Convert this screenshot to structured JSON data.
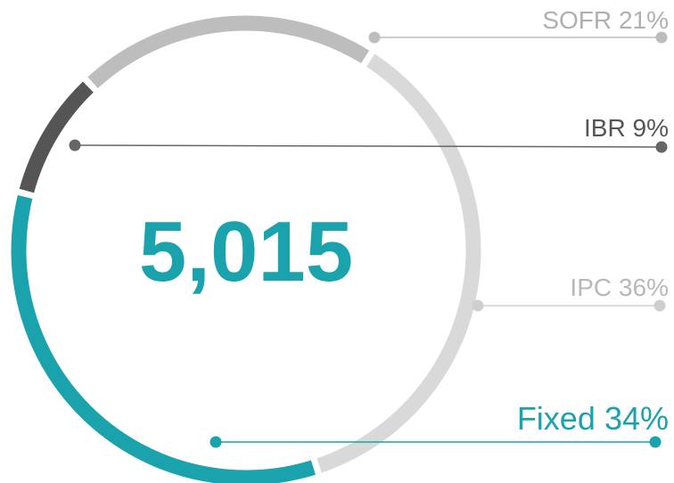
{
  "chart_data": {
    "type": "donut",
    "center_text": "5,015",
    "categories": [
      "SOFR",
      "IPC",
      "Fixed",
      "IBR"
    ],
    "values": [
      21,
      36,
      34,
      9
    ],
    "value_labels": [
      "21%",
      "36%",
      "34%",
      "9%"
    ],
    "colors": [
      "#bdbdbd",
      "#d9d9d9",
      "#1aa3ad",
      "#555555"
    ]
  }
}
